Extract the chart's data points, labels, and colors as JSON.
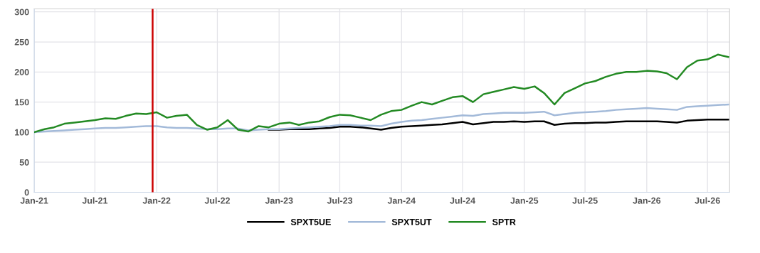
{
  "chart_data": {
    "type": "line",
    "x": [
      "2021-01",
      "2021-02",
      "2021-03",
      "2021-04",
      "2021-05",
      "2021-06",
      "2021-07",
      "2021-08",
      "2021-09",
      "2021-10",
      "2021-11",
      "2021-12",
      "2022-01",
      "2022-02",
      "2022-03",
      "2022-04",
      "2022-05",
      "2022-06",
      "2022-07",
      "2022-08",
      "2022-09",
      "2022-10",
      "2022-11",
      "2022-12",
      "2023-01",
      "2023-02",
      "2023-03",
      "2023-04",
      "2023-05",
      "2023-06",
      "2023-07",
      "2023-08",
      "2023-09",
      "2023-10",
      "2023-11",
      "2023-12",
      "2024-01",
      "2024-02",
      "2024-03",
      "2024-04",
      "2024-05",
      "2024-06",
      "2024-07",
      "2024-08",
      "2024-09",
      "2024-10",
      "2024-11",
      "2024-12",
      "2025-01",
      "2025-02",
      "2025-03",
      "2025-04",
      "2025-05",
      "2025-06",
      "2025-07",
      "2025-08",
      "2025-09",
      "2025-10",
      "2025-11",
      "2025-12",
      "2026-01",
      "2026-02",
      "2026-03",
      "2026-04",
      "2026-05",
      "2026-06",
      "2026-07",
      "2026-08",
      "2026-09"
    ],
    "series": [
      {
        "name": "SPXT5UE",
        "color": "#000000",
        "values": [
          null,
          null,
          null,
          null,
          null,
          null,
          null,
          null,
          null,
          null,
          null,
          null,
          null,
          null,
          null,
          null,
          null,
          null,
          null,
          null,
          null,
          null,
          null,
          104,
          104,
          105,
          105,
          105,
          106,
          107,
          109,
          109,
          108,
          106,
          104,
          107,
          109,
          110,
          111,
          112,
          113,
          115,
          117,
          113,
          115,
          117,
          117,
          118,
          117,
          118,
          118,
          112,
          114,
          115,
          115,
          116,
          116,
          117,
          118,
          118,
          118,
          118,
          117,
          116,
          119,
          120,
          121,
          121,
          121
        ]
      },
      {
        "name": "SPXT5UT",
        "color": "#a3bad9",
        "values": [
          100,
          101,
          102,
          103,
          104,
          105,
          106,
          107,
          107,
          108,
          109,
          110,
          110,
          108,
          107,
          107,
          106,
          105,
          105,
          106,
          106,
          103,
          104,
          105,
          105,
          106,
          107,
          108,
          109,
          110,
          112,
          112,
          111,
          111,
          110,
          114,
          117,
          119,
          120,
          122,
          124,
          126,
          128,
          127,
          130,
          131,
          132,
          132,
          132,
          133,
          134,
          128,
          130,
          132,
          133,
          134,
          135,
          137,
          138,
          139,
          140,
          139,
          138,
          137,
          142,
          143,
          144,
          145,
          146
        ]
      },
      {
        "name": "SPTR",
        "color": "#238a23",
        "values": [
          100,
          105,
          108,
          114,
          116,
          118,
          120,
          123,
          122,
          127,
          131,
          130,
          133,
          124,
          127,
          129,
          112,
          104,
          108,
          120,
          104,
          101,
          110,
          108,
          114,
          116,
          112,
          116,
          118,
          125,
          129,
          128,
          124,
          120,
          129,
          135,
          137,
          144,
          150,
          146,
          152,
          158,
          160,
          150,
          163,
          167,
          171,
          175,
          172,
          176,
          165,
          146,
          165,
          173,
          181,
          185,
          192,
          197,
          200,
          200,
          202,
          201,
          198,
          188,
          208,
          219,
          221,
          229,
          225
        ]
      }
    ],
    "xlim": [
      "2021-01-01",
      "2026-09-05"
    ],
    "xticks": [
      {
        "value": "2021-01-01",
        "label": "Jan-21"
      },
      {
        "value": "2021-07-01",
        "label": "Jul-21"
      },
      {
        "value": "2022-01-01",
        "label": "Jan-22"
      },
      {
        "value": "2022-07-01",
        "label": "Jul-22"
      },
      {
        "value": "2023-01-01",
        "label": "Jan-23"
      },
      {
        "value": "2023-07-01",
        "label": "Jul-23"
      },
      {
        "value": "2024-01-01",
        "label": "Jan-24"
      },
      {
        "value": "2024-07-01",
        "label": "Jul-24"
      },
      {
        "value": "2025-01-01",
        "label": "Jan-25"
      },
      {
        "value": "2025-07-01",
        "label": "Jul-25"
      },
      {
        "value": "2026-01-01",
        "label": "Jan-26"
      },
      {
        "value": "2026-07-01",
        "label": "Jul-26"
      }
    ],
    "ylim": [
      0,
      305
    ],
    "yticks": [
      0,
      50,
      100,
      150,
      200,
      250,
      300
    ],
    "ref_lines": [
      {
        "axis": "x",
        "value": "2021-12-20",
        "color": "#cc0000"
      }
    ],
    "grid": true,
    "legend": "bottom"
  }
}
